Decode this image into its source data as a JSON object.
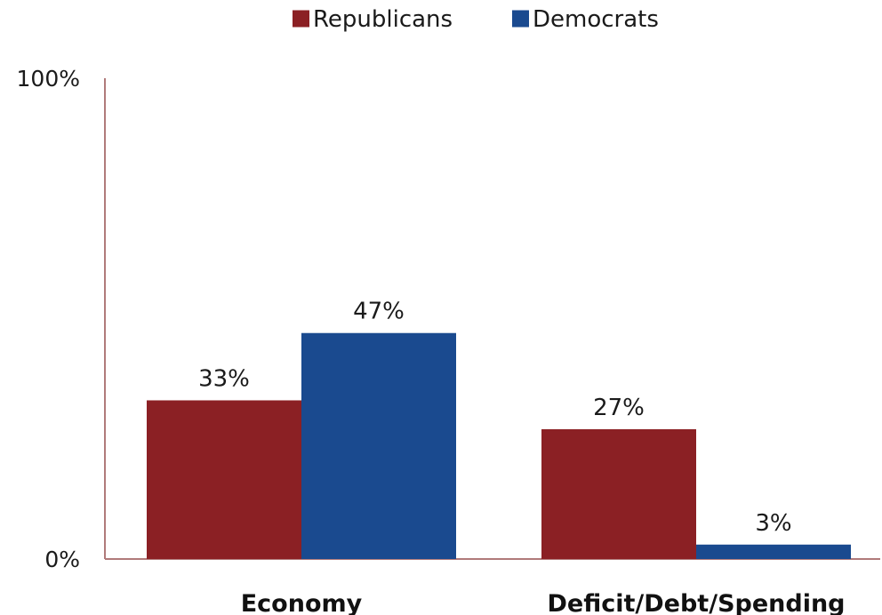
{
  "chart_data": {
    "type": "bar",
    "categories": [
      "Economy",
      "Deficit/Debt/Spending"
    ],
    "series": [
      {
        "name": "Republicans",
        "values": [
          33,
          27
        ],
        "color": "#8b2024"
      },
      {
        "name": "Democrats",
        "values": [
          47,
          3
        ],
        "color": "#1a4a8f"
      }
    ],
    "data_labels": [
      [
        "33%",
        "27%"
      ],
      [
        "47%",
        "3%"
      ]
    ],
    "y_tick_labels": {
      "min": "0%",
      "max": "100%"
    },
    "ylim": [
      0,
      100
    ],
    "grid": false,
    "legend_position": "top-center",
    "axis_color": "#b07a7a"
  }
}
